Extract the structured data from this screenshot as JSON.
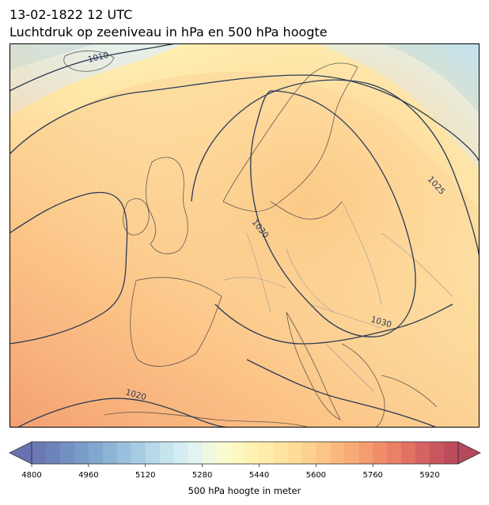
{
  "header": {
    "datetime": "13-02-1822 12 UTC",
    "subtitle": "Luchtdruk op zeeniveau in hPa en 500 hPa hoogte"
  },
  "map": {
    "region": "Europe",
    "isobar_labels": [
      "1010",
      "1025",
      "1030",
      "1030",
      "1020"
    ],
    "colors": {
      "isobar": "#2b3a55",
      "coast": "#444444",
      "border": "#9a9a9a"
    }
  },
  "colorbar": {
    "label": "500 hPa hoogte in meter",
    "ticks": [
      "4800",
      "4960",
      "5120",
      "5280",
      "5440",
      "5600",
      "5760",
      "5920"
    ],
    "min": 4800,
    "max": 6000,
    "step": 40,
    "colors": [
      "#6a72b0",
      "#6e88bd",
      "#7b9fca",
      "#8db6d6",
      "#a7cce2",
      "#c3e3ee",
      "#e0f2f4",
      "#f8fbd6",
      "#fff5b8",
      "#ffe9a6",
      "#fed995",
      "#fcc485",
      "#f9ab75",
      "#f2906a",
      "#e47563",
      "#cc5a60",
      "#b8485c"
    ]
  }
}
